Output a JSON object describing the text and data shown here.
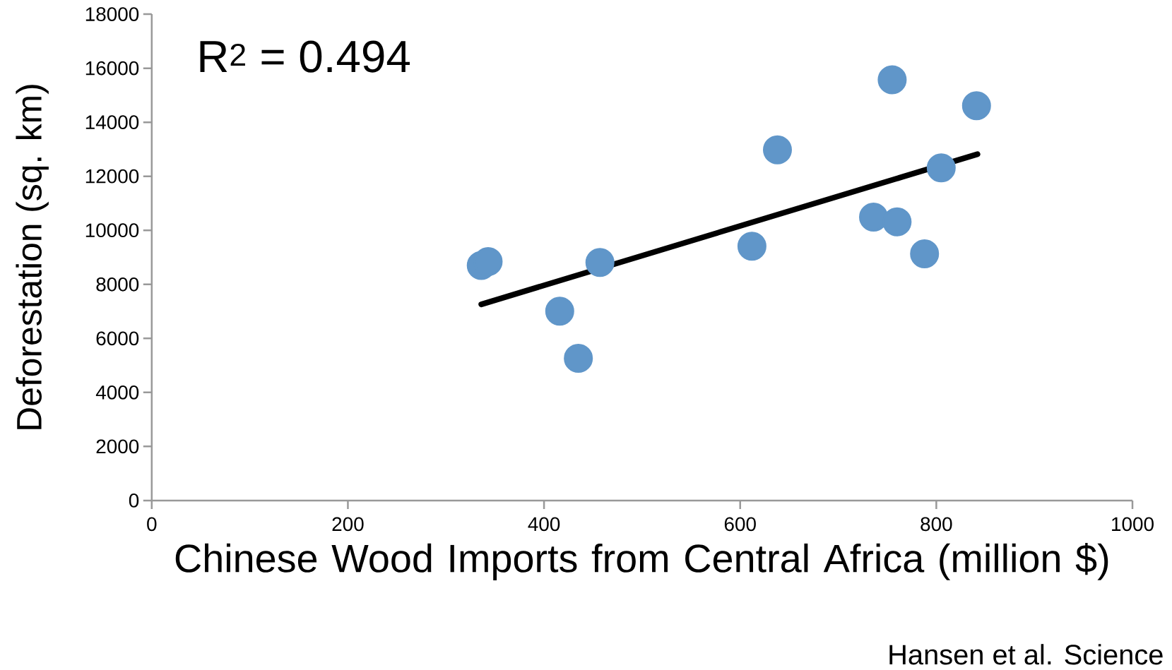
{
  "chart_data": {
    "type": "scatter",
    "xlabel": "Chinese Wood Imports from Central Africa (million $)",
    "ylabel": "Deforestation (sq. km)",
    "annotations": [
      "R$^{2}$ = 0.494",
      "Hansen et al. Science"
    ],
    "xlim": [
      0,
      1000
    ],
    "xticks": [
      0,
      200,
      400,
      600,
      800,
      1000
    ],
    "ylim": [
      0,
      18000
    ],
    "yticks": [
      0,
      2000,
      4000,
      6000,
      8000,
      10000,
      12000,
      14000,
      16000,
      18000
    ],
    "grid": false,
    "marker": "circle",
    "series": [
      {
        "type": "scatter",
        "color": "#6096c9",
        "x": [
          336,
          343,
          457,
          416,
          435,
          612,
          638,
          755,
          841,
          805,
          736,
          760,
          788
        ],
        "values": [
          8700,
          8840,
          8810,
          7010,
          5260,
          9410,
          12980,
          15570,
          14610,
          12310,
          10490,
          10310,
          9130
        ]
      },
      {
        "type": "line",
        "marker": "none",
        "color": "#000000",
        "x": [
          336,
          842
        ],
        "values": [
          7260,
          12820
        ]
      }
    ]
  }
}
